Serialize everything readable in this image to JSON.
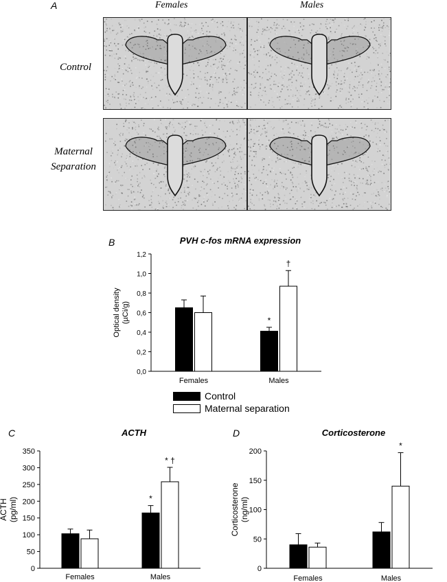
{
  "panel_a": {
    "letter": "A",
    "col_headers": [
      "Females",
      "Males"
    ],
    "row_headers": [
      [
        "Control"
      ],
      [
        "Maternal",
        "Separation"
      ]
    ]
  },
  "legend": {
    "items": [
      {
        "label": "Control",
        "color": "#000000"
      },
      {
        "label": "Maternal separation",
        "color": "#ffffff"
      }
    ]
  },
  "chart_data": [
    {
      "id": "B",
      "letter": "B",
      "type": "bar",
      "title": "PVH c-fos mRNA expression",
      "ylabel": [
        "Optical density",
        "(µCi/g)"
      ],
      "categories": [
        "Females",
        "Males"
      ],
      "ylim": [
        0,
        1.2
      ],
      "yticks": [
        "0,0",
        "0,2",
        "0,4",
        "0,6",
        "0,8",
        "1,0",
        "1,2"
      ],
      "series": [
        {
          "name": "Control",
          "color": "#000000",
          "values": [
            0.65,
            0.41
          ],
          "errors": [
            0.08,
            0.04
          ],
          "marks": [
            "",
            "*"
          ]
        },
        {
          "name": "Maternal separation",
          "color": "#ffffff",
          "values": [
            0.6,
            0.87
          ],
          "errors": [
            0.17,
            0.16
          ],
          "marks": [
            "",
            "†"
          ]
        }
      ]
    },
    {
      "id": "C",
      "letter": "C",
      "type": "bar",
      "title": "ACTH",
      "ylabel": [
        "ACTH",
        "(pg/ml)"
      ],
      "categories": [
        "Females",
        "Males"
      ],
      "ylim": [
        0,
        350
      ],
      "yticks": [
        "0",
        "50",
        "100",
        "150",
        "200",
        "250",
        "300",
        "350"
      ],
      "series": [
        {
          "name": "Control",
          "color": "#000000",
          "values": [
            103,
            165
          ],
          "errors": [
            14,
            22
          ],
          "marks": [
            "",
            "*"
          ]
        },
        {
          "name": "Maternal separation",
          "color": "#ffffff",
          "values": [
            88,
            258
          ],
          "errors": [
            26,
            43
          ],
          "marks": [
            "",
            "* †"
          ]
        }
      ]
    },
    {
      "id": "D",
      "letter": "D",
      "type": "bar",
      "title": "Corticosterone",
      "ylabel": [
        "Corticosterone",
        "(ng/ml)"
      ],
      "categories": [
        "Females",
        "Males"
      ],
      "ylim": [
        0,
        200
      ],
      "yticks": [
        "0",
        "50",
        "100",
        "150",
        "200"
      ],
      "series": [
        {
          "name": "Control",
          "color": "#000000",
          "values": [
            40,
            62
          ],
          "errors": [
            19,
            16
          ],
          "marks": [
            "",
            ""
          ]
        },
        {
          "name": "Maternal separation",
          "color": "#ffffff",
          "values": [
            36,
            140
          ],
          "errors": [
            7,
            57
          ],
          "marks": [
            "",
            "*"
          ]
        }
      ]
    }
  ]
}
